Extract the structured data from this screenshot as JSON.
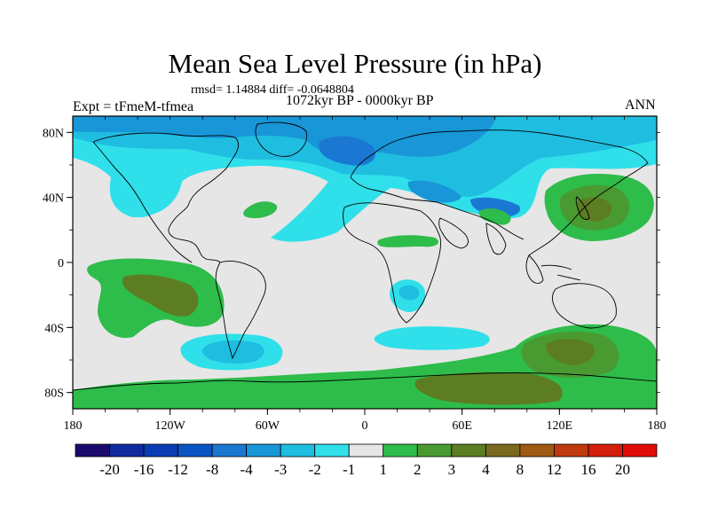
{
  "title": "Mean Sea Level Pressure (in hPa)",
  "stats": "rmsd= 1.14884 diff= -0.0648804",
  "period": "1072kyr BP - 0000kyr BP",
  "experiment": "Expt = tFmeM-tfmea",
  "season": "ANN",
  "map": {
    "x_ticks": [
      "180",
      "120W",
      "60W",
      "0",
      "60E",
      "120E",
      "180"
    ],
    "y_ticks": [
      "80N",
      "40N",
      "0",
      "40S",
      "80S"
    ]
  },
  "colorbar": {
    "labels": [
      "-20",
      "-16",
      "-12",
      "-8",
      "-4",
      "-3",
      "-2",
      "-1",
      "1",
      "2",
      "3",
      "4",
      "8",
      "12",
      "16",
      "20"
    ],
    "colors": [
      "#1a0a6e",
      "#102aa0",
      "#0a3cb4",
      "#0a55c4",
      "#1a78d2",
      "#1896d8",
      "#1fbde0",
      "#2fe0ea",
      "#e6e6e6",
      "#2ebc4a",
      "#4a9a32",
      "#5c7d22",
      "#7a6a1e",
      "#a05a14",
      "#c03a0e",
      "#d21e0a",
      "#e00c08"
    ]
  },
  "palette": {
    "ocean_neutral": "#e6e6e6",
    "coast": "#000000"
  }
}
